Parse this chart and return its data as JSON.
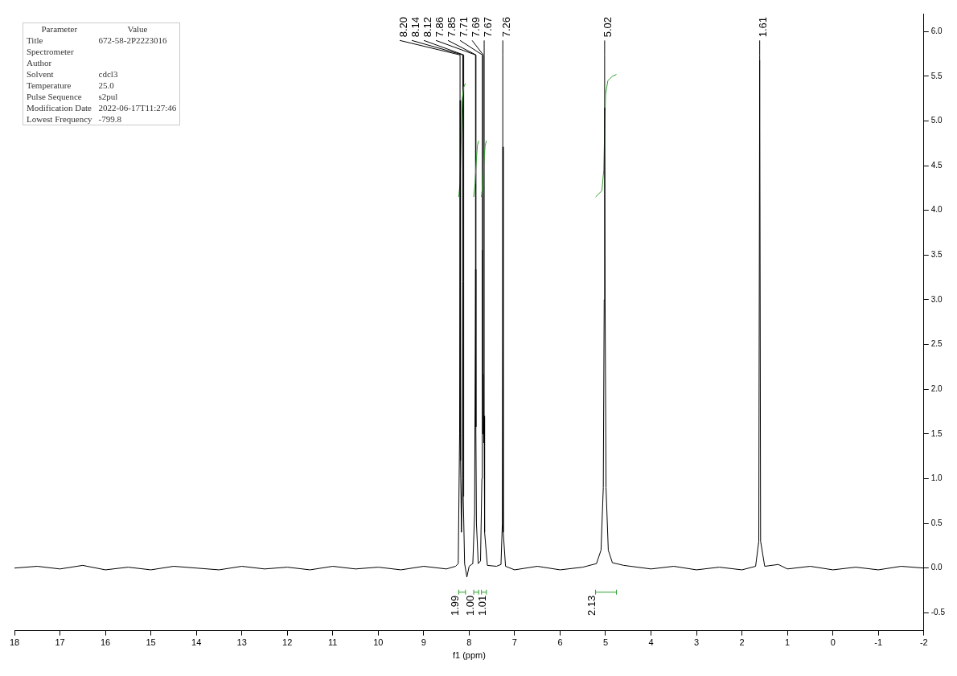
{
  "chart_data": {
    "type": "line",
    "xlabel": "f1 (ppm)",
    "xlim": [
      18,
      -2
    ],
    "xticks": [
      18,
      17,
      16,
      15,
      14,
      13,
      12,
      11,
      10,
      9,
      8,
      7,
      6,
      5,
      4,
      3,
      2,
      1,
      0,
      -1,
      -2
    ],
    "ylim": [
      -0.7,
      6.2
    ],
    "yticks": [
      {
        "value": -0.5,
        "label": "-0.5"
      },
      {
        "value": 0,
        "label": "0.0"
      },
      {
        "value": 0.5,
        "label": "0.5"
      },
      {
        "value": 1,
        "label": "1.0"
      },
      {
        "value": 1.5,
        "label": "1.5"
      },
      {
        "value": 2,
        "label": "2.0"
      },
      {
        "value": 2.5,
        "label": "2.5"
      },
      {
        "value": 3,
        "label": "3.0"
      },
      {
        "value": 3.5,
        "label": "3.5"
      },
      {
        "value": 4,
        "label": "4.0"
      },
      {
        "value": 4.5,
        "label": "4.5"
      },
      {
        "value": 5,
        "label": "5.0"
      },
      {
        "value": 5.5,
        "label": "5.5"
      },
      {
        "value": 6,
        "label": "6.0"
      }
    ],
    "grid": false,
    "legend": false,
    "marker": "none",
    "line_style": "solid",
    "series": [
      {
        "color": "#000000",
        "x": [
          18,
          17.5,
          17,
          16.5,
          16,
          15.5,
          15,
          14.5,
          14,
          13.5,
          13,
          12.5,
          12,
          11.5,
          11,
          10.5,
          10,
          9.5,
          9,
          8.5,
          8.3,
          8.24,
          8.21,
          8.2,
          8.19,
          8.17,
          8.15,
          8.14,
          8.13,
          8.1,
          8.05,
          8,
          7.92,
          7.88,
          7.86,
          7.855,
          7.85,
          7.84,
          7.8,
          7.75,
          7.72,
          7.71,
          7.7,
          7.69,
          7.68,
          7.67,
          7.66,
          7.6,
          7.4,
          7.3,
          7.27,
          7.26,
          7.25,
          7.2,
          7,
          6.5,
          6,
          5.5,
          5.2,
          5.1,
          5.05,
          5.03,
          5.02,
          5.01,
          4.99,
          4.94,
          4.85,
          4.6,
          4,
          3.5,
          3,
          2.5,
          2,
          1.7,
          1.63,
          1.61,
          1.59,
          1.5,
          1.2,
          1,
          0.5,
          0,
          -0.5,
          -1,
          -1.5,
          -2
        ],
        "values": [
          0,
          0.02,
          -0.01,
          0.03,
          -0.02,
          0.01,
          -0.02,
          0.02,
          0,
          -0.02,
          0.02,
          -0.01,
          0.01,
          -0.02,
          0.02,
          -0.01,
          0.01,
          -0.02,
          0.02,
          -0.01,
          0.02,
          0.05,
          1.5,
          5.23,
          1.2,
          0.4,
          1,
          3.2,
          0.8,
          0.05,
          -0.1,
          0.02,
          0.05,
          0.6,
          3.34,
          1.6,
          1.58,
          0.5,
          0.05,
          0.08,
          1,
          3.56,
          1.5,
          2.17,
          1.4,
          1.7,
          0.4,
          0.03,
          0.02,
          0.04,
          0.5,
          4.71,
          0.4,
          0.02,
          -0.02,
          0.02,
          -0.02,
          0.01,
          0.05,
          0.2,
          0.9,
          3,
          5.15,
          3,
          0.9,
          0.2,
          0.06,
          0.03,
          -0.01,
          0.02,
          -0.02,
          0.01,
          -0.02,
          0.02,
          0.3,
          5.68,
          0.3,
          0.02,
          0.04,
          -0.01,
          0.02,
          -0.02,
          0.01,
          -0.02,
          0.02,
          0
        ]
      },
      {
        "color": "#2e9e2e",
        "x": [
          8.23,
          8.2,
          8.18,
          8.15,
          8.12,
          8.08
        ],
        "values": [
          4.15,
          4.3,
          4.7,
          5.25,
          5.38,
          5.42
        ]
      },
      {
        "color": "#2e9e2e",
        "x": [
          7.9,
          7.87,
          7.85,
          7.82,
          7.79
        ],
        "values": [
          4.15,
          4.3,
          4.5,
          4.72,
          4.78
        ]
      },
      {
        "color": "#2e9e2e",
        "x": [
          7.73,
          7.7,
          7.68,
          7.65,
          7.62
        ],
        "values": [
          4.15,
          4.3,
          4.5,
          4.72,
          4.78
        ]
      },
      {
        "color": "#2e9e2e",
        "x": [
          5.22,
          5.08,
          5.04,
          5.02,
          5,
          4.95,
          4.85,
          4.76
        ],
        "values": [
          4.15,
          4.22,
          4.45,
          4.9,
          5.3,
          5.45,
          5.5,
          5.52
        ]
      }
    ],
    "annotations": [
      "Parameter\tValue",
      "Title\t672-58-2P2223016",
      "Spectrometer\t",
      "Author\t",
      "Solvent\tcdcl3",
      "Temperature\t25.0",
      "Pulse Sequence\ts2pul",
      "Modification Date\t2022-06-17T11:27:46",
      "Lowest Frequency\t-799.8",
      {
        "text": "8.20",
        "x": 8.2,
        "y": 5.23
      },
      {
        "text": "8.14",
        "x": 8.14,
        "y": 3.2
      },
      {
        "text": "8.12",
        "x": 8.12,
        "y": 0.8
      },
      {
        "text": "7.86",
        "x": 7.86,
        "y": 3.34
      },
      {
        "text": "7.85",
        "x": 7.85,
        "y": 1.58
      },
      {
        "text": "7.71",
        "x": 7.71,
        "y": 3.56
      },
      {
        "text": "7.69",
        "x": 7.69,
        "y": 2.17
      },
      {
        "text": "7.67",
        "x": 7.67,
        "y": 1.7
      },
      {
        "text": "7.26",
        "x": 7.26,
        "y": 4.71
      },
      {
        "text": "5.02",
        "x": 5.02,
        "y": 5.15
      },
      {
        "text": "1.61",
        "x": 1.61,
        "y": 5.68
      },
      "1.99",
      "1.00",
      "1.01",
      "2.13"
    ]
  }
}
